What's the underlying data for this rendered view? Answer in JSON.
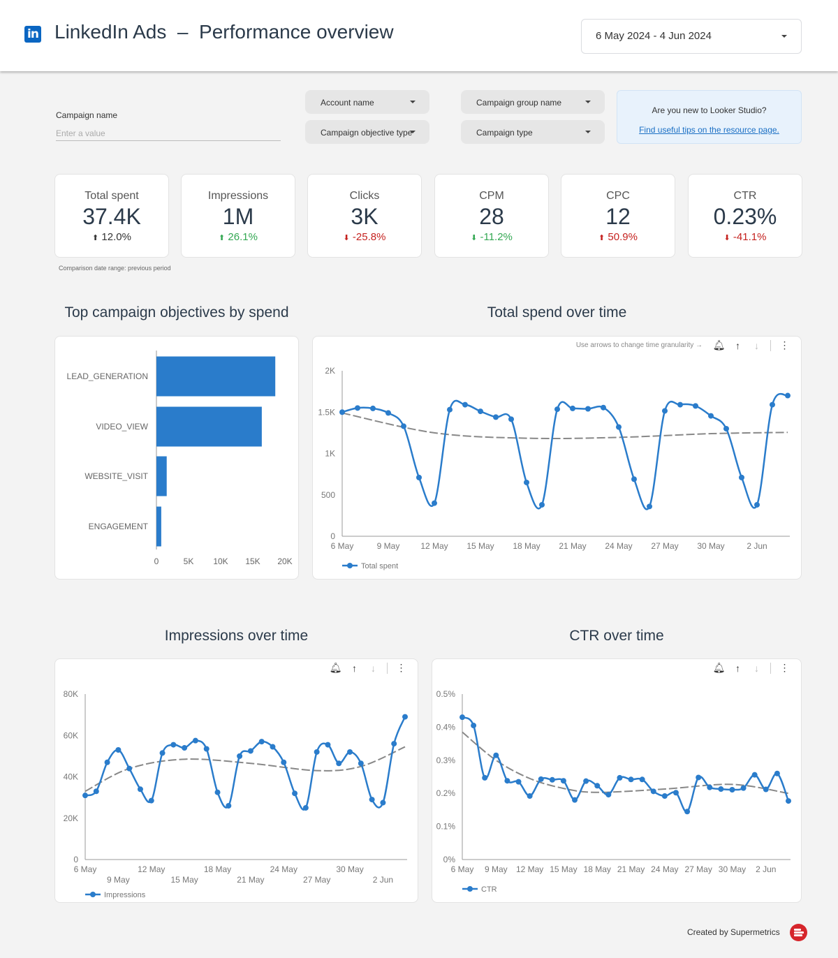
{
  "header": {
    "title": "LinkedIn Ads  –  Performance overview",
    "logo_text": "in",
    "date_range": "6 May 2024 - 4 Jun 2024"
  },
  "filters": {
    "campaign_name_label": "Campaign name",
    "campaign_name_placeholder": "Enter a value",
    "campaign_name_value": "",
    "dropdowns": [
      "Account name",
      "Campaign group name",
      "Campaign objective type",
      "Campaign type"
    ]
  },
  "info": {
    "question": "Are you new to Looker Studio?",
    "link": "Find useful tips on the resource page."
  },
  "kpis": [
    {
      "label": "Total spent",
      "value": "37.4K",
      "change": "12.0%",
      "direction": "up",
      "color": "#333333"
    },
    {
      "label": "Impressions",
      "value": "1M",
      "change": "26.1%",
      "direction": "up",
      "color": "#34a853"
    },
    {
      "label": "Clicks",
      "value": "3K",
      "change": "-25.8%",
      "direction": "down",
      "color": "#c5221f"
    },
    {
      "label": "CPM",
      "value": "28",
      "change": "-11.2%",
      "direction": "down",
      "color": "#34a853"
    },
    {
      "label": "CPC",
      "value": "12",
      "change": "50.9%",
      "direction": "up",
      "color": "#c5221f"
    },
    {
      "label": "CTR",
      "value": "0.23%",
      "change": "-41.1%",
      "direction": "down",
      "color": "#c5221f"
    }
  ],
  "comparison_note": "Comparison date range: previous period",
  "toolbar": {
    "hint": "Use arrows to change time granularity →",
    "icons": [
      "alert-bell-icon",
      "arrow-up-icon",
      "arrow-down-icon",
      "more-vert-icon"
    ]
  },
  "footer": {
    "text": "Created by Supermetrics"
  },
  "colors": {
    "series": "#2a7ccb",
    "trend": "#888888",
    "accent": "#0a66c2"
  },
  "chart_data": [
    {
      "id": "bar",
      "type": "bar",
      "orientation": "horizontal",
      "title": "Top campaign objectives by spend",
      "categories": [
        "LEAD_GENERATION",
        "VIDEO_VIEW",
        "WEBSITE_VISIT",
        "ENGAGEMENT"
      ],
      "values": [
        18500,
        16400,
        1600,
        750
      ],
      "xlim": [
        0,
        20000
      ],
      "xticks": [
        {
          "v": 0,
          "l": "0"
        },
        {
          "v": 5000,
          "l": "5K"
        },
        {
          "v": 10000,
          "l": "10K"
        },
        {
          "v": 15000,
          "l": "15K"
        },
        {
          "v": 20000,
          "l": "20K"
        }
      ],
      "grid": false
    },
    {
      "id": "spend",
      "type": "line",
      "title": "Total spend over time",
      "ylim": [
        0,
        2000
      ],
      "yticks": [
        {
          "v": 0,
          "l": "0"
        },
        {
          "v": 500,
          "l": "500"
        },
        {
          "v": 1000,
          "l": "1K"
        },
        {
          "v": 1500,
          "l": "1.5K"
        },
        {
          "v": 2000,
          "l": "2K"
        }
      ],
      "xticks": [
        "6 May",
        "9 May",
        "12 May",
        "15 May",
        "18 May",
        "21 May",
        "24 May",
        "27 May",
        "30 May",
        "2 Jun"
      ],
      "xticks_row2": [],
      "series": [
        {
          "name": "Total spent",
          "values": [
            1500,
            1550,
            1545,
            1490,
            1330,
            710,
            400,
            1530,
            1590,
            1510,
            1440,
            1415,
            650,
            380,
            1535,
            1545,
            1540,
            1555,
            1320,
            690,
            360,
            1515,
            1590,
            1575,
            1455,
            1300,
            710,
            380,
            1590,
            1700
          ]
        }
      ],
      "trend": [
        {
          "x": "6 May",
          "y": 1490
        },
        {
          "x": "12 May",
          "y": 1250
        },
        {
          "x": "18 May",
          "y": 1185
        },
        {
          "x": "24 May",
          "y": 1195
        },
        {
          "x": "30 May",
          "y": 1240
        },
        {
          "x": "4 Jun",
          "y": 1255
        }
      ],
      "legend": "bottom-left"
    },
    {
      "id": "impr",
      "type": "line",
      "title": "Impressions over time",
      "ylim": [
        0,
        80000
      ],
      "yticks": [
        {
          "v": 0,
          "l": "0"
        },
        {
          "v": 20000,
          "l": "20K"
        },
        {
          "v": 40000,
          "l": "40K"
        },
        {
          "v": 60000,
          "l": "60K"
        },
        {
          "v": 80000,
          "l": "80K"
        }
      ],
      "xticks": [
        "6 May",
        "12 May",
        "18 May",
        "24 May",
        "30 May"
      ],
      "xticks_row2": [
        "9 May",
        "15 May",
        "21 May",
        "27 May",
        "2 Jun"
      ],
      "series": [
        {
          "name": "Impressions",
          "values": [
            31000,
            33000,
            47000,
            53000,
            44000,
            34000,
            28500,
            51500,
            55500,
            54000,
            57500,
            53500,
            32500,
            26000,
            50000,
            52500,
            57000,
            54500,
            47000,
            32000,
            25000,
            52000,
            55500,
            46500,
            52000,
            46500,
            29000,
            27500,
            56000,
            69000
          ]
        }
      ],
      "trend": [
        {
          "x": "6 May",
          "y": 33000
        },
        {
          "x": "10 May",
          "y": 44000
        },
        {
          "x": "15 May",
          "y": 48500
        },
        {
          "x": "21 May",
          "y": 46500
        },
        {
          "x": "27 May",
          "y": 43000
        },
        {
          "x": "31 May",
          "y": 45000
        },
        {
          "x": "4 Jun",
          "y": 54500
        }
      ],
      "legend": "bottom-left"
    },
    {
      "id": "ctr",
      "type": "line",
      "title": "CTR over time",
      "ylim": [
        0,
        0.5
      ],
      "unit": "%",
      "yticks": [
        {
          "v": 0,
          "l": "0%"
        },
        {
          "v": 0.1,
          "l": "0.1%"
        },
        {
          "v": 0.2,
          "l": "0.2%"
        },
        {
          "v": 0.3,
          "l": "0.3%"
        },
        {
          "v": 0.4,
          "l": "0.4%"
        },
        {
          "v": 0.5,
          "l": "0.5%"
        }
      ],
      "xticks": [
        "6 May",
        "9 May",
        "12 May",
        "15 May",
        "18 May",
        "21 May",
        "24 May",
        "27 May",
        "30 May",
        "2 Jun"
      ],
      "xticks_row2": [],
      "series": [
        {
          "name": "CTR",
          "values": [
            0.43,
            0.405,
            0.247,
            0.315,
            0.238,
            0.235,
            0.192,
            0.243,
            0.241,
            0.238,
            0.18,
            0.237,
            0.223,
            0.196,
            0.247,
            0.242,
            0.242,
            0.206,
            0.192,
            0.202,
            0.145,
            0.248,
            0.218,
            0.213,
            0.211,
            0.216,
            0.256,
            0.212,
            0.26,
            0.177
          ]
        }
      ],
      "trend": [
        {
          "x": "6 May",
          "y": 0.385
        },
        {
          "x": "9 May",
          "y": 0.3
        },
        {
          "x": "12 May",
          "y": 0.245
        },
        {
          "x": "15 May",
          "y": 0.215
        },
        {
          "x": "18 May",
          "y": 0.203
        },
        {
          "x": "24 May",
          "y": 0.213
        },
        {
          "x": "30 May",
          "y": 0.227
        },
        {
          "x": "4 Jun",
          "y": 0.2
        }
      ],
      "legend": "bottom-left"
    }
  ],
  "dates": [
    "6 May",
    "7 May",
    "8 May",
    "9 May",
    "10 May",
    "11 May",
    "12 May",
    "13 May",
    "14 May",
    "15 May",
    "16 May",
    "17 May",
    "18 May",
    "19 May",
    "20 May",
    "21 May",
    "22 May",
    "23 May",
    "24 May",
    "25 May",
    "26 May",
    "27 May",
    "28 May",
    "29 May",
    "30 May",
    "31 May",
    "1 Jun",
    "2 Jun",
    "3 Jun",
    "4 Jun"
  ]
}
